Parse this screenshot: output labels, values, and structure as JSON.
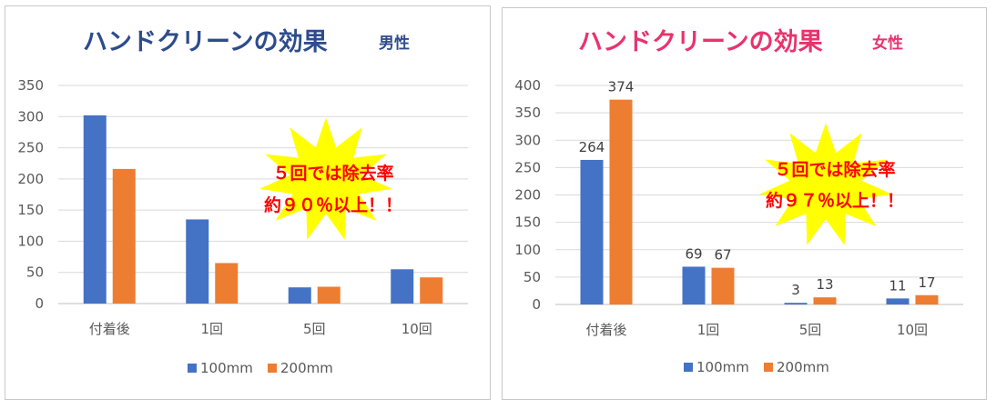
{
  "colors": {
    "series_blue": "#4472c4",
    "series_orange": "#ed7d31",
    "grid": "#d9d9d9",
    "burst": "#ffff00",
    "callout_text": "#ff0000"
  },
  "chart_data": [
    {
      "type": "bar",
      "title": "ハンドクリーンの効果",
      "subtitle": "男性",
      "title_color": "#2e4c8c",
      "categories": [
        "付着後",
        "1回",
        "5回",
        "10回"
      ],
      "series": [
        {
          "name": "100mm",
          "values": [
            302,
            135,
            26,
            55
          ],
          "color": "#4472c4"
        },
        {
          "name": "200mm",
          "values": [
            216,
            65,
            27,
            42
          ],
          "color": "#ed7d31"
        }
      ],
      "ylim": [
        0,
        350
      ],
      "yticks": [
        "0",
        "50",
        "100",
        "150",
        "200",
        "250",
        "300",
        "350"
      ],
      "data_labels": false,
      "grid": true,
      "legend": "bottom",
      "callout": [
        "５回では除去率",
        "約９０％以上！！"
      ]
    },
    {
      "type": "bar",
      "title": "ハンドクリーンの効果",
      "subtitle": "女性",
      "title_color": "#e8336e",
      "categories": [
        "付着後",
        "1回",
        "5回",
        "10回"
      ],
      "series": [
        {
          "name": "100mm",
          "values": [
            264,
            69,
            3,
            11
          ],
          "color": "#4472c4"
        },
        {
          "name": "200mm",
          "values": [
            374,
            67,
            13,
            17
          ],
          "color": "#ed7d31"
        }
      ],
      "ylim": [
        0,
        400
      ],
      "yticks": [
        "0",
        "50",
        "100",
        "150",
        "200",
        "250",
        "300",
        "350",
        "400"
      ],
      "data_labels": true,
      "grid": true,
      "legend": "bottom",
      "callout": [
        "５回では除去率",
        "約９７％以上！！"
      ]
    }
  ]
}
